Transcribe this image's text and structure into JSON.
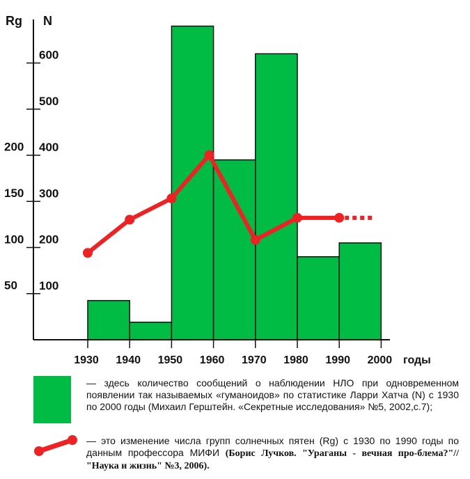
{
  "chart_data": {
    "type": "bar",
    "title": "",
    "x_unit_label": "годы",
    "x_ticks": [
      1930,
      1940,
      1950,
      1960,
      1970,
      1980,
      1990,
      2000
    ],
    "xlim": [
      1920,
      2000
    ],
    "left_axis_label": "Rg",
    "right_axis_label": "N",
    "rg_ticks": [
      50,
      100,
      150,
      200
    ],
    "n_ticks": [
      100,
      200,
      300,
      400,
      500,
      600
    ],
    "n_ylim": [
      0,
      700
    ],
    "bar_color": "#00bb44",
    "line_color": "#ee2222",
    "bars": [
      {
        "x0": 1930,
        "x1": 1940,
        "value": 85
      },
      {
        "x0": 1940,
        "x1": 1950,
        "value": 38
      },
      {
        "x0": 1950,
        "x1": 1960,
        "value": 680
      },
      {
        "x0": 1960,
        "x1": 1970,
        "value": 390
      },
      {
        "x0": 1970,
        "x1": 1980,
        "value": 620
      },
      {
        "x0": 1980,
        "x1": 1990,
        "value": 180
      },
      {
        "x0": 1990,
        "x1": 2000,
        "value": 210
      }
    ],
    "series": [
      {
        "x": [
          1930,
          1940,
          1950,
          1959,
          1970,
          1980,
          1990
        ],
        "y": [
          94,
          130,
          153,
          200,
          108,
          132,
          132
        ]
      }
    ]
  },
  "legend": {
    "bars_text": "— здесь количество сообщений о наблюдении НЛО при одновременном появлении так называемых «гуманоидов» по статистике Ларри Хатча (N) с 1930 по 2000 годы (Михаил Герштейн. «Секретные исследования» №5, 2002,с.7);",
    "line_text_1": "— это изменение числа групп солнечных пятен (Rg) с 1930 по 1990 годы по данным профессора МИФИ",
    "line_text_2": "(Борис Лучков. \"Ураганы - вечная про-блема?\"// \"Наука и жизнь\" №3, 2006)."
  }
}
